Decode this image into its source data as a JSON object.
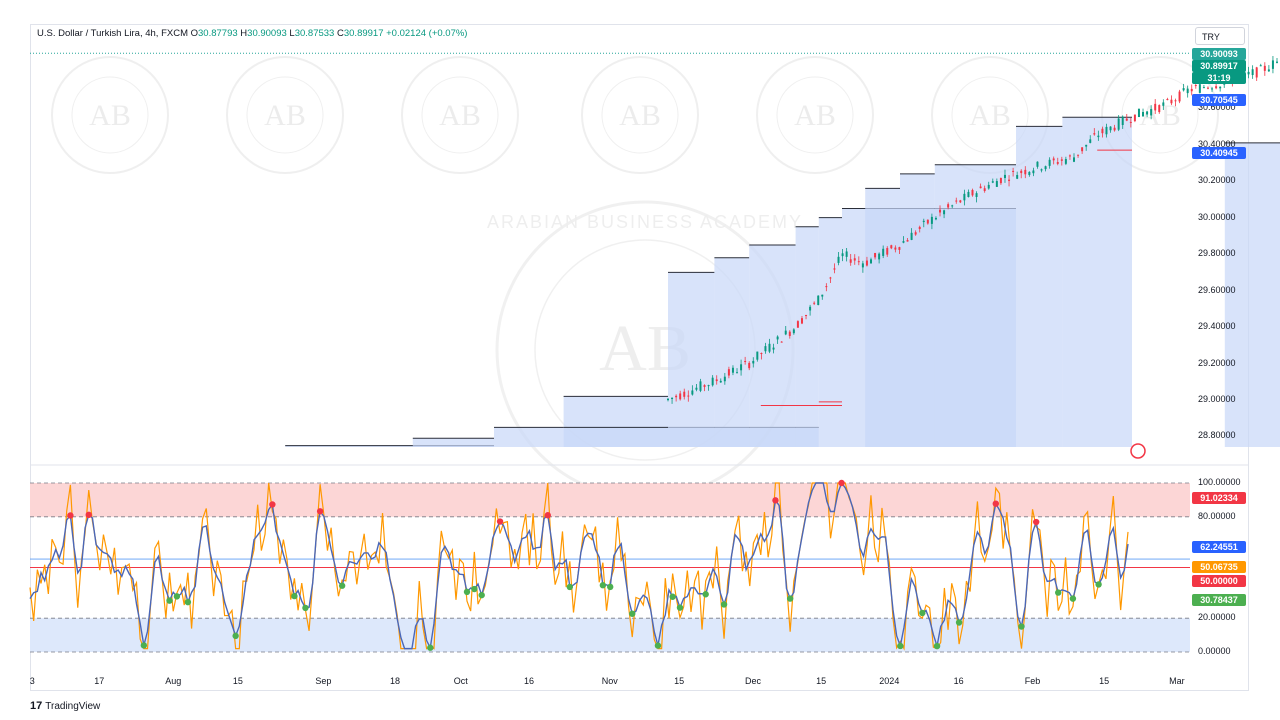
{
  "header": {
    "symbol": "U.S. Dollar / Turkish Lira, 4h, FXCM",
    "o_label": "O",
    "o_value": "30.87793",
    "h_label": "H",
    "h_value": "30.90093",
    "l_label": "L",
    "l_value": "30.87533",
    "c_label": "C",
    "c_value": "30.89917",
    "change": "+0.02124 (+0.07%)"
  },
  "currency_button": "TRY",
  "price_axis": {
    "ticks": [
      "30.80000",
      "30.60000",
      "30.40000",
      "30.20000",
      "30.00000",
      "29.80000",
      "29.60000",
      "29.40000",
      "29.20000",
      "29.00000",
      "28.80000"
    ],
    "labels": [
      {
        "text": "30.90093",
        "color": "#26a69a"
      },
      {
        "text": "30.89917",
        "color": "#089981"
      },
      {
        "text": "31:19",
        "color": "#089981"
      },
      {
        "text": "30.70545",
        "color": "#2962ff"
      },
      {
        "text": "30.40945",
        "color": "#2962ff"
      }
    ]
  },
  "osc_axis": {
    "ticks": [
      "100.00000",
      "80.00000",
      "20.00000",
      "0.00000"
    ],
    "labels": [
      {
        "text": "91.02334",
        "color": "#f23645"
      },
      {
        "text": "62.24551",
        "color": "#2962ff"
      },
      {
        "text": "50.06735",
        "color": "#ff9800"
      },
      {
        "text": "50.00000",
        "color": "#f23645"
      },
      {
        "text": "30.78437",
        "color": "#4caf50"
      }
    ]
  },
  "time_axis": [
    "3",
    "17",
    "Aug",
    "15",
    "Sep",
    "18",
    "Oct",
    "16",
    "Nov",
    "15",
    "Dec",
    "15",
    "2024",
    "16",
    "Feb",
    "15",
    "Mar"
  ],
  "watermark": {
    "initials": "AB",
    "name": "ARABIAN BUSINESS ACADEMY"
  },
  "footer": {
    "brand": "TradingView"
  },
  "colors": {
    "up": "#089981",
    "down": "#f23645",
    "blue": "#4a67b8",
    "orange": "#ff9800",
    "fill": "#c8d7f8",
    "ob": "#fcd6d6",
    "os": "#dde8fb"
  },
  "chart_data": {
    "type": "candlestick_with_oscillator",
    "price": {
      "ylim": [
        28.66,
        30.93
      ],
      "last": 30.89917,
      "high_line": 30.90093,
      "path": [
        [
          0.05,
          28.66
        ],
        [
          0.22,
          28.79
        ],
        [
          0.28,
          28.88
        ],
        [
          0.33,
          28.95
        ],
        [
          0.4,
          28.93
        ],
        [
          0.46,
          28.95
        ],
        [
          0.55,
          29.0
        ],
        [
          0.59,
          29.1
        ],
        [
          0.62,
          29.2
        ],
        [
          0.66,
          29.4
        ],
        [
          0.68,
          29.55
        ],
        [
          0.7,
          29.79
        ],
        [
          0.72,
          29.75
        ],
        [
          0.75,
          29.85
        ],
        [
          0.78,
          30.0
        ],
        [
          0.81,
          30.12
        ],
        [
          0.84,
          30.22
        ],
        [
          0.87,
          30.28
        ],
        [
          0.9,
          30.33
        ],
        [
          0.92,
          30.45
        ],
        [
          0.95,
          30.55
        ],
        [
          0.98,
          30.62
        ],
        [
          1.0,
          30.7
        ],
        [
          1.03,
          30.74
        ],
        [
          1.06,
          30.8
        ],
        [
          1.09,
          30.9
        ]
      ],
      "support_steps": [
        {
          "from": 0.22,
          "to": 0.4,
          "value": 28.75
        },
        {
          "from": 0.33,
          "to": 0.4,
          "value": 28.79
        },
        {
          "from": 0.4,
          "to": 0.46,
          "value": 28.85
        },
        {
          "from": 0.46,
          "to": 0.55,
          "value": 29.02
        },
        {
          "from": 0.46,
          "to": 0.68,
          "value": 28.85
        },
        {
          "from": 0.55,
          "to": 0.59,
          "value": 29.7
        },
        {
          "from": 0.59,
          "to": 0.62,
          "value": 29.78
        },
        {
          "from": 0.62,
          "to": 0.66,
          "value": 29.85
        },
        {
          "from": 0.66,
          "to": 0.68,
          "value": 29.95
        },
        {
          "from": 0.68,
          "to": 0.7,
          "value": 30.0
        },
        {
          "from": 0.7,
          "to": 0.85,
          "value": 30.05
        },
        {
          "from": 0.72,
          "to": 0.75,
          "value": 30.16
        },
        {
          "from": 0.75,
          "to": 0.78,
          "value": 30.24
        },
        {
          "from": 0.78,
          "to": 0.85,
          "value": 30.29
        },
        {
          "from": 0.85,
          "to": 0.89,
          "value": 30.5
        },
        {
          "from": 0.89,
          "to": 0.95,
          "value": 30.55
        },
        {
          "from": 1.03,
          "to": 1.08,
          "value": 30.41
        }
      ]
    },
    "oscillator": {
      "ylim": [
        0,
        100
      ],
      "overbought": 80,
      "oversold": 20,
      "midline": 50,
      "last_fast": 62.24551,
      "last_slow": 50.06735,
      "last_signal": 91.02334,
      "last_low": 30.78437
    }
  }
}
